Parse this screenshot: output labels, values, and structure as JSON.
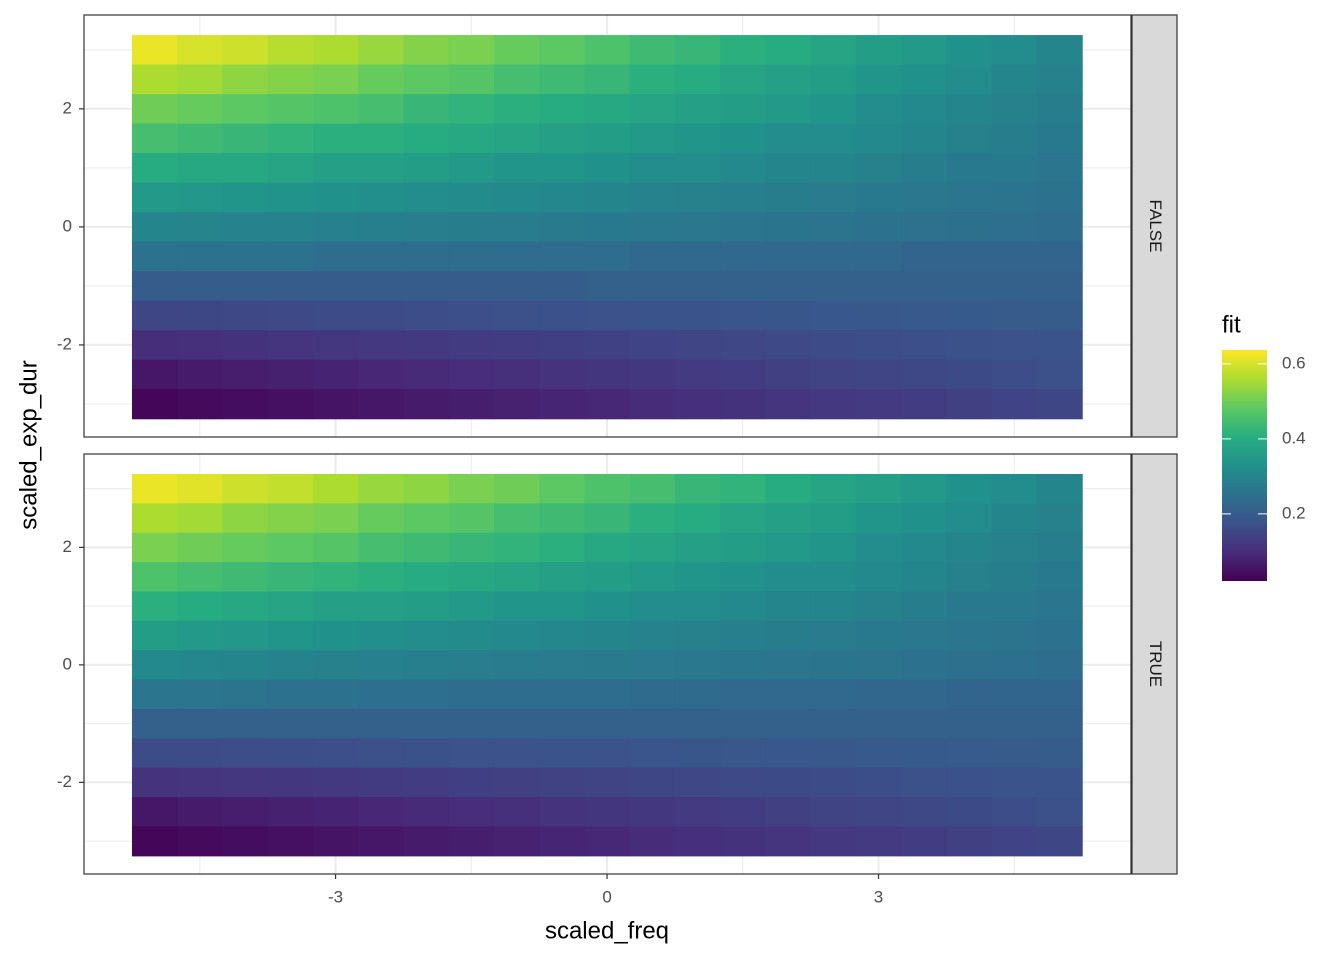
{
  "chart_data": {
    "type": "heatmap",
    "xlabel": "scaled_freq",
    "ylabel": "scaled_exp_dur",
    "legend_title": "fit",
    "x": [
      -5,
      -4.5,
      -4,
      -3.5,
      -3,
      -2.5,
      -2,
      -1.5,
      -1,
      -0.5,
      0,
      0.5,
      1,
      1.5,
      2,
      2.5,
      3,
      3.5,
      4,
      4.5,
      5
    ],
    "y": [
      3,
      2.5,
      2,
      1.5,
      1,
      0.5,
      0,
      -0.5,
      -1,
      -1.5,
      -2,
      -2.5,
      -3
    ],
    "xlim": [
      -5.78,
      5.79
    ],
    "ylim": [
      -3.56,
      3.59
    ],
    "xticks": [
      -3,
      0,
      3
    ],
    "yticks": [
      -2,
      0,
      2
    ],
    "minor_xticks": [
      -4.5,
      -1.5,
      1.5,
      4.5
    ],
    "minor_yticks": [
      -3,
      -1,
      1,
      3
    ],
    "grid": true,
    "fill_lim": [
      0.021,
      0.637
    ],
    "fill_ticks": [
      0.2,
      0.4,
      0.6
    ],
    "colors": [
      "#440154",
      "#472d7b",
      "#3b528b",
      "#2c728e",
      "#21918c",
      "#28ae80",
      "#5ec962",
      "#addc30",
      "#fde725"
    ],
    "facets": [
      {
        "label": "FALSE",
        "values": [
          [
            0.62,
            0.6,
            0.59,
            0.57,
            0.56,
            0.54,
            0.52,
            0.51,
            0.49,
            0.48,
            0.46,
            0.44,
            0.43,
            0.41,
            0.4,
            0.38,
            0.36,
            0.35,
            0.33,
            0.32,
            0.3
          ],
          [
            0.56,
            0.55,
            0.53,
            0.52,
            0.51,
            0.49,
            0.48,
            0.47,
            0.45,
            0.44,
            0.43,
            0.41,
            0.4,
            0.38,
            0.37,
            0.36,
            0.34,
            0.33,
            0.32,
            0.3,
            0.29
          ],
          [
            0.5,
            0.49,
            0.48,
            0.47,
            0.46,
            0.45,
            0.43,
            0.42,
            0.41,
            0.4,
            0.39,
            0.38,
            0.37,
            0.36,
            0.35,
            0.34,
            0.32,
            0.31,
            0.3,
            0.29,
            0.28
          ],
          [
            0.45,
            0.44,
            0.43,
            0.42,
            0.41,
            0.41,
            0.4,
            0.39,
            0.38,
            0.37,
            0.36,
            0.35,
            0.34,
            0.33,
            0.32,
            0.32,
            0.31,
            0.3,
            0.29,
            0.28,
            0.27
          ],
          [
            0.4,
            0.39,
            0.39,
            0.38,
            0.37,
            0.37,
            0.36,
            0.35,
            0.34,
            0.34,
            0.33,
            0.32,
            0.32,
            0.31,
            0.3,
            0.3,
            0.29,
            0.28,
            0.27,
            0.27,
            0.26
          ],
          [
            0.35,
            0.345,
            0.34,
            0.335,
            0.33,
            0.325,
            0.32,
            0.315,
            0.31,
            0.305,
            0.3,
            0.295,
            0.29,
            0.285,
            0.28,
            0.275,
            0.27,
            0.265,
            0.26,
            0.255,
            0.25
          ],
          [
            0.3,
            0.297,
            0.294,
            0.291,
            0.288,
            0.285,
            0.282,
            0.279,
            0.276,
            0.273,
            0.27,
            0.267,
            0.264,
            0.261,
            0.258,
            0.255,
            0.252,
            0.249,
            0.246,
            0.243,
            0.24
          ],
          [
            0.25,
            0.25,
            0.25,
            0.25,
            0.24,
            0.24,
            0.24,
            0.24,
            0.24,
            0.24,
            0.24,
            0.23,
            0.23,
            0.23,
            0.23,
            0.23,
            0.23,
            0.22,
            0.22,
            0.22,
            0.22
          ],
          [
            0.2,
            0.2,
            0.2,
            0.2,
            0.2,
            0.2,
            0.2,
            0.2,
            0.2,
            0.2,
            0.21,
            0.21,
            0.21,
            0.21,
            0.21,
            0.21,
            0.21,
            0.21,
            0.21,
            0.21,
            0.21
          ],
          [
            0.15,
            0.153,
            0.155,
            0.158,
            0.16,
            0.163,
            0.165,
            0.168,
            0.17,
            0.173,
            0.175,
            0.178,
            0.18,
            0.183,
            0.185,
            0.188,
            0.19,
            0.193,
            0.195,
            0.198,
            0.2
          ],
          [
            0.1,
            0.104,
            0.108,
            0.112,
            0.116,
            0.12,
            0.124,
            0.128,
            0.132,
            0.136,
            0.14,
            0.144,
            0.148,
            0.152,
            0.156,
            0.16,
            0.164,
            0.168,
            0.172,
            0.176,
            0.18
          ],
          [
            0.06,
            0.066,
            0.071,
            0.077,
            0.082,
            0.088,
            0.093,
            0.099,
            0.104,
            0.11,
            0.115,
            0.121,
            0.126,
            0.132,
            0.137,
            0.143,
            0.148,
            0.154,
            0.159,
            0.165,
            0.17
          ],
          [
            0.03,
            0.036,
            0.042,
            0.048,
            0.054,
            0.06,
            0.066,
            0.072,
            0.078,
            0.084,
            0.09,
            0.096,
            0.102,
            0.108,
            0.114,
            0.12,
            0.126,
            0.132,
            0.138,
            0.144,
            0.15
          ]
        ]
      },
      {
        "label": "TRUE",
        "values": [
          [
            0.62,
            0.61,
            0.59,
            0.58,
            0.56,
            0.54,
            0.53,
            0.51,
            0.5,
            0.48,
            0.46,
            0.45,
            0.43,
            0.42,
            0.4,
            0.38,
            0.37,
            0.35,
            0.33,
            0.32,
            0.3
          ],
          [
            0.56,
            0.55,
            0.53,
            0.52,
            0.51,
            0.49,
            0.48,
            0.47,
            0.45,
            0.44,
            0.43,
            0.41,
            0.4,
            0.38,
            0.37,
            0.36,
            0.34,
            0.33,
            0.32,
            0.3,
            0.29
          ],
          [
            0.51,
            0.5,
            0.49,
            0.48,
            0.47,
            0.45,
            0.44,
            0.43,
            0.42,
            0.41,
            0.39,
            0.38,
            0.37,
            0.36,
            0.35,
            0.34,
            0.32,
            0.31,
            0.3,
            0.29,
            0.28
          ],
          [
            0.46,
            0.45,
            0.44,
            0.43,
            0.42,
            0.41,
            0.4,
            0.39,
            0.38,
            0.37,
            0.36,
            0.35,
            0.34,
            0.33,
            0.32,
            0.32,
            0.31,
            0.3,
            0.29,
            0.28,
            0.27
          ],
          [
            0.41,
            0.4,
            0.39,
            0.38,
            0.37,
            0.37,
            0.36,
            0.35,
            0.34,
            0.34,
            0.33,
            0.32,
            0.32,
            0.31,
            0.3,
            0.3,
            0.29,
            0.28,
            0.27,
            0.27,
            0.26
          ],
          [
            0.36,
            0.35,
            0.345,
            0.34,
            0.33,
            0.325,
            0.32,
            0.315,
            0.31,
            0.305,
            0.3,
            0.295,
            0.29,
            0.285,
            0.28,
            0.275,
            0.27,
            0.265,
            0.26,
            0.255,
            0.25
          ],
          [
            0.31,
            0.305,
            0.3,
            0.295,
            0.29,
            0.287,
            0.284,
            0.281,
            0.278,
            0.275,
            0.272,
            0.269,
            0.266,
            0.263,
            0.26,
            0.257,
            0.254,
            0.251,
            0.248,
            0.245,
            0.24
          ],
          [
            0.26,
            0.26,
            0.255,
            0.25,
            0.25,
            0.245,
            0.245,
            0.24,
            0.24,
            0.24,
            0.24,
            0.235,
            0.235,
            0.23,
            0.23,
            0.23,
            0.225,
            0.225,
            0.22,
            0.22,
            0.22
          ],
          [
            0.21,
            0.21,
            0.21,
            0.21,
            0.21,
            0.21,
            0.21,
            0.21,
            0.21,
            0.21,
            0.21,
            0.21,
            0.21,
            0.21,
            0.21,
            0.21,
            0.21,
            0.21,
            0.21,
            0.21,
            0.21
          ],
          [
            0.16,
            0.162,
            0.164,
            0.166,
            0.168,
            0.17,
            0.172,
            0.174,
            0.176,
            0.178,
            0.18,
            0.182,
            0.184,
            0.186,
            0.188,
            0.19,
            0.192,
            0.194,
            0.196,
            0.198,
            0.2
          ],
          [
            0.11,
            0.114,
            0.117,
            0.121,
            0.124,
            0.128,
            0.131,
            0.135,
            0.138,
            0.142,
            0.145,
            0.149,
            0.152,
            0.156,
            0.159,
            0.163,
            0.166,
            0.17,
            0.173,
            0.177,
            0.18
          ],
          [
            0.06,
            0.066,
            0.071,
            0.077,
            0.082,
            0.088,
            0.093,
            0.099,
            0.104,
            0.11,
            0.115,
            0.121,
            0.126,
            0.132,
            0.137,
            0.143,
            0.148,
            0.154,
            0.159,
            0.165,
            0.17
          ],
          [
            0.03,
            0.036,
            0.042,
            0.048,
            0.054,
            0.06,
            0.066,
            0.072,
            0.078,
            0.084,
            0.09,
            0.096,
            0.102,
            0.108,
            0.114,
            0.12,
            0.126,
            0.132,
            0.138,
            0.144,
            0.15
          ]
        ]
      }
    ]
  }
}
